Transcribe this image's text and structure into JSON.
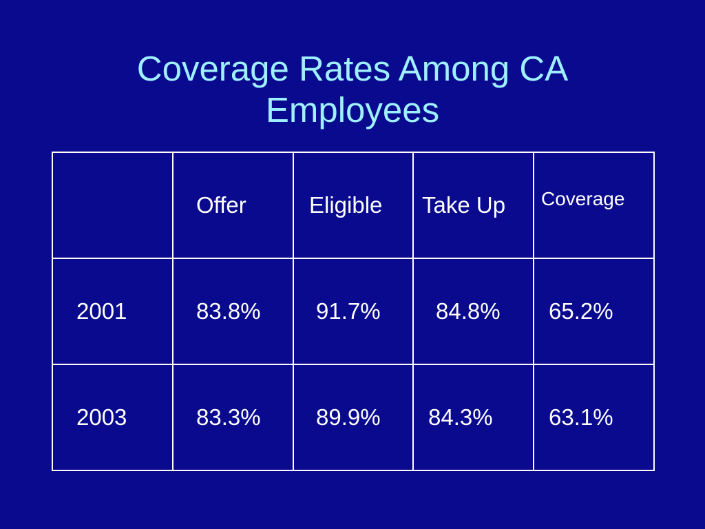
{
  "title": {
    "line1": "Coverage Rates Among CA",
    "line2": "Employees"
  },
  "table": {
    "headers": [
      "",
      "Offer",
      "Eligible",
      "Take Up",
      "Coverage"
    ],
    "rows": [
      [
        "2001",
        "83.8%",
        "91.7%",
        "84.8%",
        "65.2%"
      ],
      [
        "2003",
        "83.3%",
        "89.9%",
        "84.3%",
        "63.1%"
      ]
    ]
  },
  "colors": {
    "background": "#0a0a8e",
    "title": "#9ff0ff",
    "text": "#ffffff",
    "grid": "#ffffff"
  }
}
